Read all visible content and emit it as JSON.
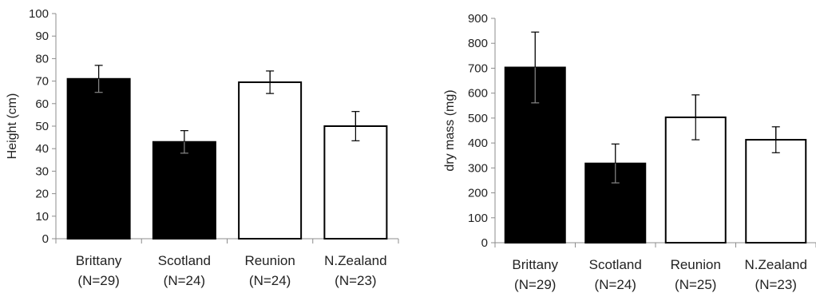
{
  "chart_data": [
    {
      "type": "bar",
      "title": "",
      "ylabel": "Height (cm)",
      "xlabel": "",
      "ylim": [
        0,
        100
      ],
      "yticks": [
        0,
        10,
        20,
        30,
        40,
        50,
        60,
        70,
        80,
        90,
        100
      ],
      "categories": [
        "Brittany",
        "Scotland",
        "Reunion",
        "N.Zealand"
      ],
      "category_n": [
        "(N=29)",
        "(N=24)",
        "(N=24)",
        "(N=23)"
      ],
      "values": [
        71,
        43,
        69.5,
        50
      ],
      "errors": [
        6,
        5,
        5,
        6.5
      ],
      "fill": [
        "#000000",
        "#000000",
        "#ffffff",
        "#ffffff"
      ]
    },
    {
      "type": "bar",
      "title": "",
      "ylabel": "dry mass (mg)",
      "xlabel": "",
      "ylim": [
        0,
        900
      ],
      "yticks": [
        0,
        100,
        200,
        300,
        400,
        500,
        600,
        700,
        800,
        900
      ],
      "categories": [
        "Brittany",
        "Scotland",
        "Reunion",
        "N.Zealand"
      ],
      "category_n": [
        "(N=29)",
        "(N=24)",
        "(N=25)",
        "(N=23)"
      ],
      "values": [
        703,
        318,
        503,
        413
      ],
      "errors": [
        142,
        78,
        90,
        52
      ],
      "fill": [
        "#000000",
        "#000000",
        "#ffffff",
        "#ffffff"
      ]
    }
  ]
}
